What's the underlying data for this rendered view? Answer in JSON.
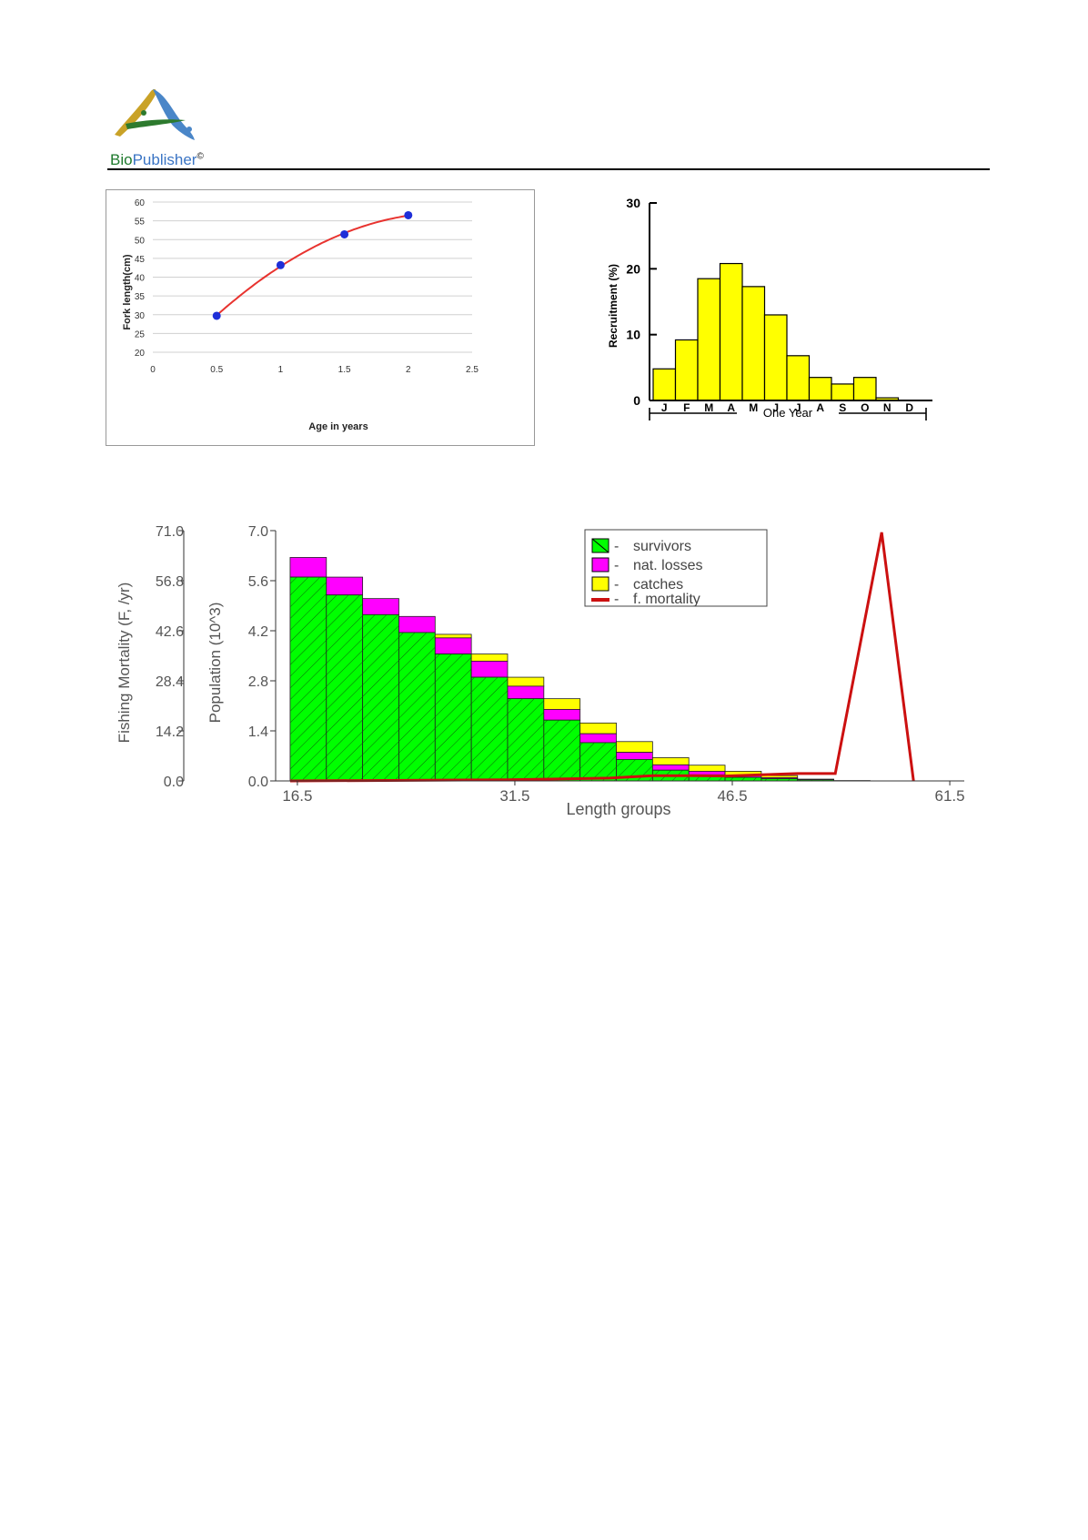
{
  "header": {
    "brand_pre": "Bio",
    "brand_mid": "Publisher",
    "brand_mark": "©",
    "logo_icon": "biopublisher-logo-icon"
  },
  "chart_data": [
    {
      "type": "scatter",
      "title": "",
      "xlabel": "Age in years",
      "ylabel": "Fork length(cm)",
      "xlim": [
        0,
        2.5
      ],
      "ylim": [
        20,
        60
      ],
      "xticks": [
        "0",
        "0.5",
        "1",
        "1.5",
        "2",
        "2.5"
      ],
      "yticks": [
        "20",
        "25",
        "30",
        "35",
        "40",
        "45",
        "50",
        "55",
        "60"
      ],
      "grid": true,
      "points": [
        {
          "x": 0.5,
          "y": 29.7
        },
        {
          "x": 1.0,
          "y": 43.2
        },
        {
          "x": 1.5,
          "y": 51.4
        },
        {
          "x": 2.0,
          "y": 56.5
        }
      ],
      "fit_curve": {
        "type": "polynomial",
        "color": "#e8332f"
      },
      "point_color": "#1f2fd8"
    },
    {
      "type": "bar",
      "title": "",
      "xlabel": "One Year",
      "ylabel": "Recruitment (%)",
      "categories": [
        "J",
        "F",
        "M",
        "A",
        "M",
        "J",
        "J",
        "A",
        "S",
        "O",
        "N",
        "D"
      ],
      "values": [
        4.8,
        9.2,
        18.5,
        20.8,
        17.3,
        13.0,
        6.8,
        3.5,
        2.5,
        3.5,
        0.4,
        0.0
      ],
      "ylim": [
        0,
        30
      ],
      "yticks": [
        "0",
        "10",
        "20",
        "30"
      ],
      "bar_color": "#ffff00"
    },
    {
      "type": "bar",
      "title": "",
      "xlabel": "Length groups",
      "ylabel": "Population (10^3)",
      "ylabel2": "Fishing Mortality (F, /yr)",
      "xticks": [
        "16.5",
        "31.5",
        "46.5",
        "61.5"
      ],
      "xlim": [
        15,
        62.5
      ],
      "ylim": [
        0,
        7.0
      ],
      "yticks": [
        "0.0",
        "1.4",
        "2.8",
        "4.2",
        "5.6",
        "7.0"
      ],
      "y2ticks": [
        "0.0",
        "14.2",
        "28.4",
        "42.6",
        "56.8",
        "71.0"
      ],
      "y2lim": [
        0,
        71.0
      ],
      "bin_width": 2.5,
      "bin_starts": [
        16,
        18.5,
        21,
        23.5,
        26,
        28.5,
        31,
        33.5,
        36,
        38.5,
        41,
        43.5,
        46,
        48.5,
        51,
        53.5
      ],
      "series": [
        {
          "name": "survivors",
          "color": "#00ff00",
          "values": [
            5.7,
            5.2,
            4.65,
            4.15,
            3.55,
            2.9,
            2.3,
            1.7,
            1.07,
            0.6,
            0.3,
            0.17,
            0.1,
            0.06,
            0.03,
            0.01
          ]
        },
        {
          "name": "nat. losses",
          "color": "#ff00ff",
          "values": [
            0.55,
            0.5,
            0.45,
            0.45,
            0.45,
            0.45,
            0.35,
            0.3,
            0.25,
            0.2,
            0.15,
            0.1,
            0.05,
            0.03,
            0.01,
            0.0
          ]
        },
        {
          "name": "catches",
          "color": "#ffff00",
          "values": [
            0.0,
            0.0,
            0.0,
            0.0,
            0.1,
            0.2,
            0.25,
            0.3,
            0.3,
            0.3,
            0.2,
            0.17,
            0.12,
            0.06,
            0.01,
            0.0
          ]
        },
        {
          "name": "f. mortality",
          "color": "#cc1010",
          "points": [
            [
              16,
              0
            ],
            [
              31,
              0.3
            ],
            [
              38,
              0.8
            ],
            [
              41,
              1.5
            ],
            [
              43.5,
              1.5
            ],
            [
              46,
              1.4
            ],
            [
              51,
              2.1
            ],
            [
              53.6,
              2.1
            ],
            [
              56.8,
              70.5
            ],
            [
              59,
              0
            ]
          ]
        }
      ],
      "legend_position": "top-right"
    }
  ]
}
